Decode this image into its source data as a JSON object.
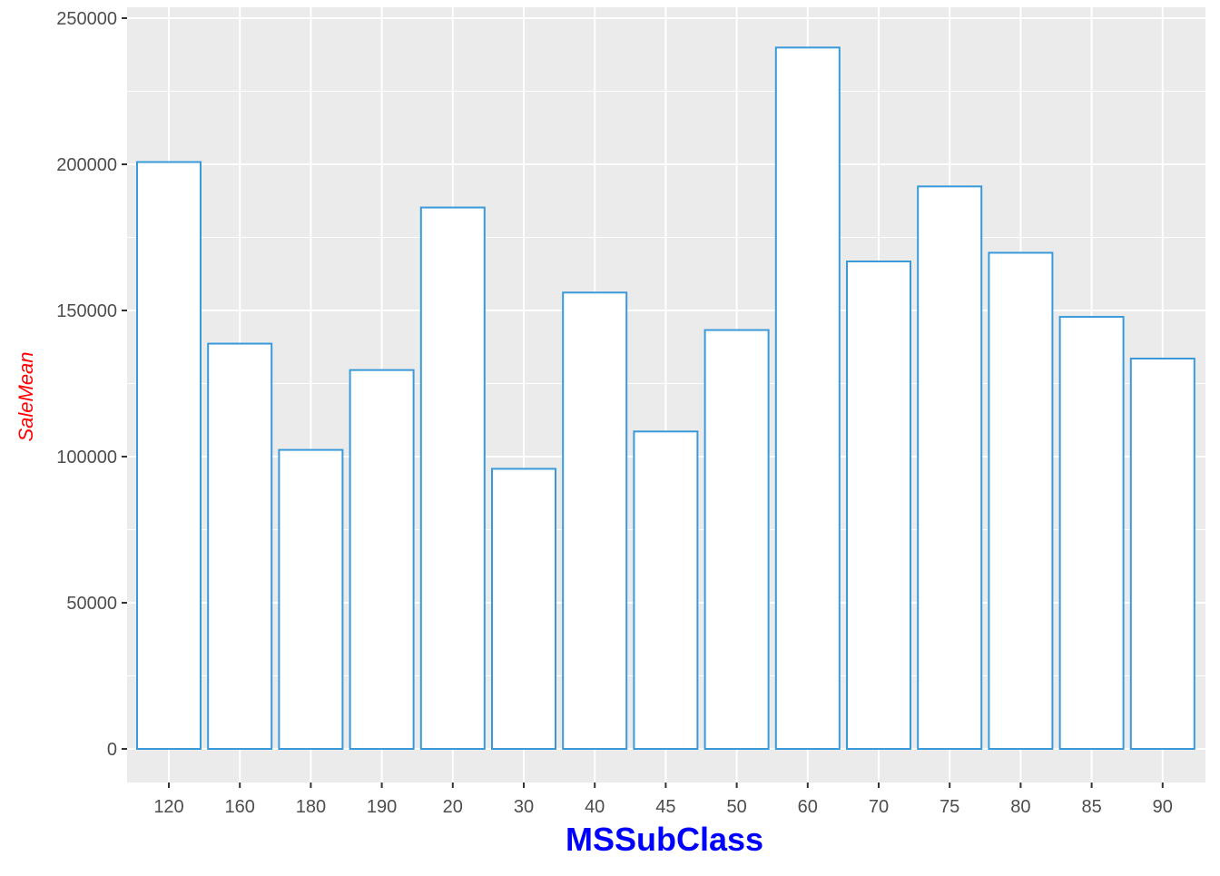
{
  "chart_data": {
    "type": "bar",
    "title": "",
    "xlabel": "MSSubClass",
    "ylabel": "SaleMean",
    "categories": [
      "120",
      "160",
      "180",
      "190",
      "20",
      "30",
      "40",
      "45",
      "50",
      "60",
      "70",
      "75",
      "80",
      "85",
      "90"
    ],
    "values": [
      200780,
      138647,
      102300,
      129614,
      185225,
      95830,
      156125,
      108592,
      143302,
      239948,
      166773,
      192437,
      169737,
      147810,
      133542
    ],
    "ylim": [
      0,
      250000
    ],
    "yticks": [
      0,
      50000,
      100000,
      150000,
      200000,
      250000
    ],
    "ytick_labels": [
      "0",
      "50000",
      "100000",
      "150000",
      "200000",
      "250000"
    ],
    "grid": true,
    "legend": "none",
    "colors": {
      "panel_background": "#ebebeb",
      "grid": "#ffffff",
      "bar_fill": "#ffffff",
      "bar_outline": "#3a9ad9",
      "xlabel_color": "#0000ff",
      "ylabel_color": "#ff0000"
    }
  }
}
